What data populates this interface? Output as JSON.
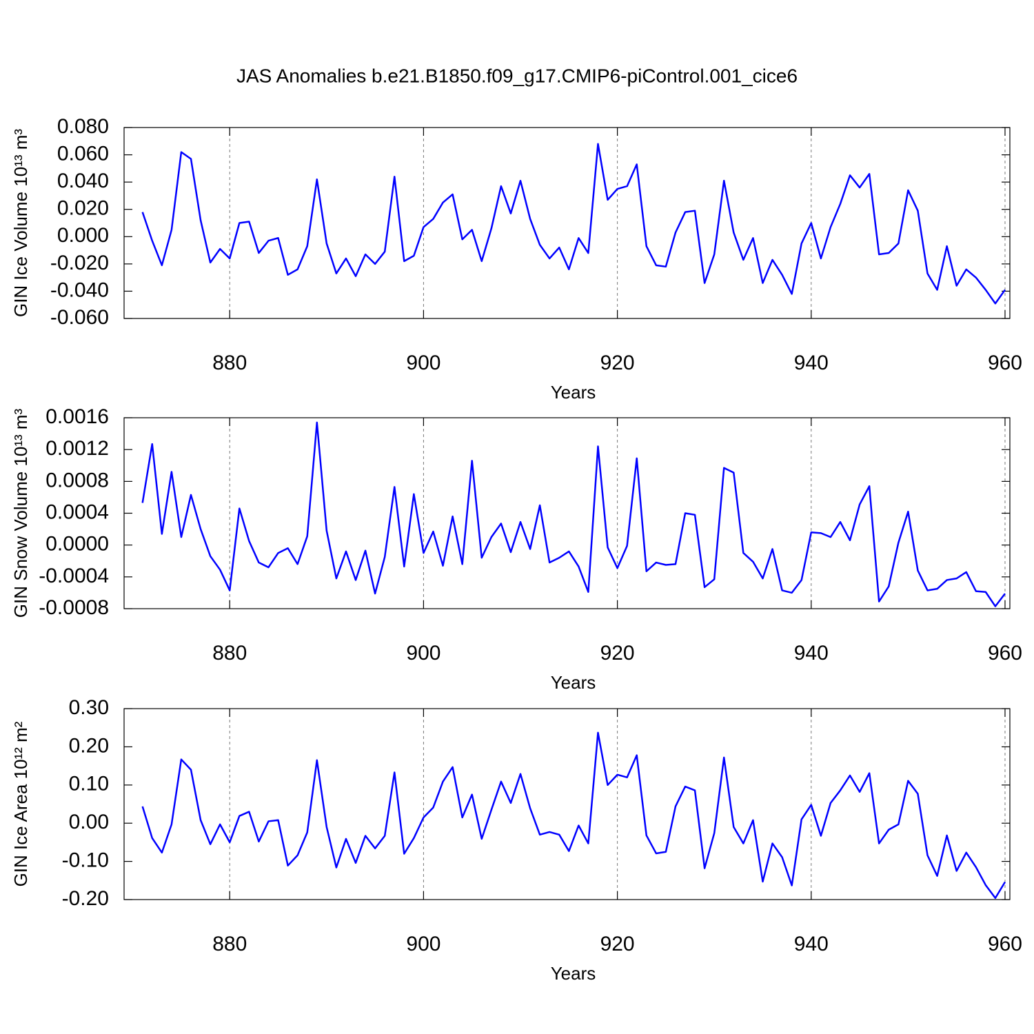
{
  "title": "JAS Anomalies b.e21.B1850.f09_g17.CMIP6-piControl.001_cice6",
  "chart_data": [
    {
      "type": "line",
      "xlabel": "Years",
      "ylabel": "GIN Ice Volume 10¹³ m³",
      "color": "#0000ff",
      "xgrid": true,
      "xlim": [
        869.1,
        960.5
      ],
      "xticks": [
        880,
        900,
        920,
        940,
        960
      ],
      "ylim": [
        -0.06,
        0.08
      ],
      "yticks": [
        {
          "value": 0.08,
          "label": "0.080"
        },
        {
          "value": 0.06,
          "label": "0.060"
        },
        {
          "value": 0.04,
          "label": "0.040"
        },
        {
          "value": 0.02,
          "label": "0.020"
        },
        {
          "value": 0,
          "label": "0.000"
        },
        {
          "value": -0.02,
          "label": "-0.020"
        },
        {
          "value": -0.04,
          "label": "-0.040"
        },
        {
          "value": -0.06,
          "label": "-0.060"
        }
      ],
      "x": [
        871,
        872,
        873,
        874,
        875,
        876,
        877,
        878,
        879,
        880,
        881,
        882,
        883,
        884,
        885,
        886,
        887,
        888,
        889,
        890,
        891,
        892,
        893,
        894,
        895,
        896,
        897,
        898,
        899,
        900,
        901,
        902,
        903,
        904,
        905,
        906,
        907,
        908,
        909,
        910,
        911,
        912,
        913,
        914,
        915,
        916,
        917,
        918,
        919,
        920,
        921,
        922,
        923,
        924,
        925,
        926,
        927,
        928,
        929,
        930,
        931,
        932,
        933,
        934,
        935,
        936,
        937,
        938,
        939,
        940,
        941,
        942,
        943,
        944,
        945,
        946,
        947,
        948,
        949,
        950,
        951,
        952,
        953,
        954,
        955,
        956,
        957,
        958,
        959,
        960
      ],
      "values": [
        0.018,
        -0.003,
        -0.021,
        0.005,
        0.062,
        0.057,
        0.012,
        -0.019,
        -0.009,
        -0.016,
        0.01,
        0.011,
        -0.012,
        -0.003,
        -0.001,
        -0.028,
        -0.024,
        -0.007,
        0.042,
        -0.005,
        -0.027,
        -0.016,
        -0.029,
        -0.013,
        -0.02,
        -0.011,
        0.044,
        -0.018,
        -0.014,
        0.007,
        0.013,
        0.025,
        0.031,
        -0.002,
        0.005,
        -0.018,
        0.006,
        0.037,
        0.017,
        0.041,
        0.013,
        -0.006,
        -0.016,
        -0.008,
        -0.024,
        -0.001,
        -0.012,
        0.068,
        0.027,
        0.035,
        0.037,
        0.053,
        -0.007,
        -0.021,
        -0.022,
        0.003,
        0.018,
        0.019,
        -0.034,
        -0.013,
        0.041,
        0.003,
        -0.017,
        -0.001,
        -0.034,
        -0.017,
        -0.028,
        -0.042,
        -0.005,
        0.01,
        -0.016,
        0.007,
        0.024,
        0.045,
        0.036,
        0.046,
        -0.013,
        -0.012,
        -0.005,
        0.034,
        0.019,
        -0.027,
        -0.039,
        -0.007,
        -0.036,
        -0.024,
        -0.03,
        -0.039,
        -0.049,
        -0.039
      ]
    },
    {
      "type": "line",
      "xlabel": "Years",
      "ylabel": "GIN Snow Volume 10¹³ m³",
      "color": "#0000ff",
      "xgrid": true,
      "xlim": [
        869.1,
        960.5
      ],
      "xticks": [
        880,
        900,
        920,
        940,
        960
      ],
      "ylim": [
        -0.0008,
        0.0016
      ],
      "yticks": [
        {
          "value": 0.0016,
          "label": "0.0016"
        },
        {
          "value": 0.0012,
          "label": "0.0012"
        },
        {
          "value": 0.0008,
          "label": "0.0008"
        },
        {
          "value": 0.0004,
          "label": "0.0004"
        },
        {
          "value": 0,
          "label": "0.0000"
        },
        {
          "value": -0.0004,
          "label": "-0.0004"
        },
        {
          "value": -0.0008,
          "label": "-0.0008"
        }
      ],
      "x": [
        871,
        872,
        873,
        874,
        875,
        876,
        877,
        878,
        879,
        880,
        881,
        882,
        883,
        884,
        885,
        886,
        887,
        888,
        889,
        890,
        891,
        892,
        893,
        894,
        895,
        896,
        897,
        898,
        899,
        900,
        901,
        902,
        903,
        904,
        905,
        906,
        907,
        908,
        909,
        910,
        911,
        912,
        913,
        914,
        915,
        916,
        917,
        918,
        919,
        920,
        921,
        922,
        923,
        924,
        925,
        926,
        927,
        928,
        929,
        930,
        931,
        932,
        933,
        934,
        935,
        936,
        937,
        938,
        939,
        940,
        941,
        942,
        943,
        944,
        945,
        946,
        947,
        948,
        949,
        950,
        951,
        952,
        953,
        954,
        955,
        956,
        957,
        958,
        959,
        960
      ],
      "values": [
        0.00053,
        0.00127,
        0.00014,
        0.00092,
        0.0001,
        0.00063,
        0.0002,
        -0.00014,
        -0.00031,
        -0.00057,
        0.00046,
        5e-05,
        -0.00022,
        -0.00028,
        -0.0001,
        -4e-05,
        -0.00024,
        0.00011,
        0.00154,
        0.00018,
        -0.00042,
        -8e-05,
        -0.00044,
        -7e-05,
        -0.00061,
        -0.00015,
        0.00073,
        -0.00027,
        0.00064,
        -0.0001,
        0.00017,
        -0.00026,
        0.00036,
        -0.00024,
        0.00106,
        -0.00016,
        0.0001,
        0.00027,
        -9e-05,
        0.00029,
        -5e-05,
        0.0005,
        -0.00022,
        -0.00016,
        -8e-05,
        -0.00027,
        -0.00059,
        0.00124,
        -3e-05,
        -0.00029,
        -1e-05,
        0.00109,
        -0.00033,
        -0.00022,
        -0.00025,
        -0.00024,
        0.0004,
        0.00038,
        -0.00053,
        -0.00043,
        0.00097,
        0.00091,
        -0.0001,
        -0.00021,
        -0.00042,
        -5e-05,
        -0.00057,
        -0.0006,
        -0.00044,
        0.00016,
        0.00015,
        0.0001,
        0.00029,
        6e-05,
        0.00051,
        0.00074,
        -0.00071,
        -0.00052,
        3e-05,
        0.00042,
        -0.00032,
        -0.00057,
        -0.00055,
        -0.00044,
        -0.00042,
        -0.00034,
        -0.00058,
        -0.00059,
        -0.00077,
        -0.00061
      ]
    },
    {
      "type": "line",
      "xlabel": "Years",
      "ylabel": "GIN Ice Area 10¹² m²",
      "color": "#0000ff",
      "xgrid": true,
      "xlim": [
        869.1,
        960.5
      ],
      "xticks": [
        880,
        900,
        920,
        940,
        960
      ],
      "ylim": [
        -0.2,
        0.3
      ],
      "yticks": [
        {
          "value": 0.3,
          "label": "0.30"
        },
        {
          "value": 0.2,
          "label": "0.20"
        },
        {
          "value": 0.1,
          "label": "0.10"
        },
        {
          "value": 0,
          "label": "0.00"
        },
        {
          "value": -0.1,
          "label": "-0.10"
        },
        {
          "value": -0.2,
          "label": "-0.20"
        }
      ],
      "x": [
        871,
        872,
        873,
        874,
        875,
        876,
        877,
        878,
        879,
        880,
        881,
        882,
        883,
        884,
        885,
        886,
        887,
        888,
        889,
        890,
        891,
        892,
        893,
        894,
        895,
        896,
        897,
        898,
        899,
        900,
        901,
        902,
        903,
        904,
        905,
        906,
        907,
        908,
        909,
        910,
        911,
        912,
        913,
        914,
        915,
        916,
        917,
        918,
        919,
        920,
        921,
        922,
        923,
        924,
        925,
        926,
        927,
        928,
        929,
        930,
        931,
        932,
        933,
        934,
        935,
        936,
        937,
        938,
        939,
        940,
        941,
        942,
        943,
        944,
        945,
        946,
        947,
        948,
        949,
        950,
        951,
        952,
        953,
        954,
        955,
        956,
        957,
        958,
        959,
        960
      ],
      "values": [
        0.044,
        -0.039,
        -0.077,
        -0.003,
        0.167,
        0.14,
        0.008,
        -0.055,
        -0.003,
        -0.05,
        0.019,
        0.03,
        -0.048,
        0.005,
        0.008,
        -0.111,
        -0.084,
        -0.024,
        0.165,
        -0.01,
        -0.116,
        -0.041,
        -0.104,
        -0.033,
        -0.066,
        -0.033,
        0.133,
        -0.08,
        -0.039,
        0.015,
        0.041,
        0.109,
        0.147,
        0.015,
        0.075,
        -0.041,
        0.035,
        0.109,
        0.053,
        0.129,
        0.039,
        -0.03,
        -0.023,
        -0.03,
        -0.073,
        -0.006,
        -0.053,
        0.237,
        0.1,
        0.127,
        0.12,
        0.178,
        -0.032,
        -0.079,
        -0.075,
        0.044,
        0.096,
        0.086,
        -0.118,
        -0.026,
        0.172,
        -0.01,
        -0.053,
        0.008,
        -0.153,
        -0.053,
        -0.089,
        -0.163,
        0.01,
        0.048,
        -0.033,
        0.053,
        0.086,
        0.125,
        0.082,
        0.131,
        -0.053,
        -0.017,
        -0.003,
        0.111,
        0.077,
        -0.084,
        -0.138,
        -0.032,
        -0.125,
        -0.077,
        -0.115,
        -0.162,
        -0.196,
        -0.154
      ]
    }
  ]
}
